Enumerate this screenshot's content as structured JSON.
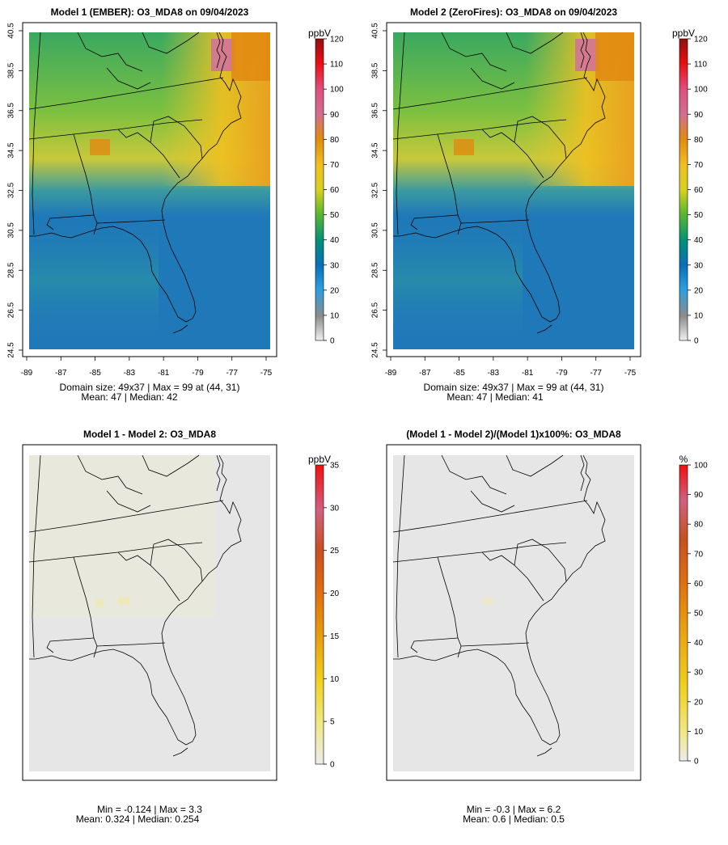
{
  "panels": [
    {
      "title": "Model 1 (EMBER): O3_MDA8 on 09/04/2023",
      "stats_line1": "Domain size: 49x37 | Max = 99 at (44, 31)",
      "stats_line2": "Mean: 47 | Median: 42",
      "unit": "ppbV",
      "scale": "ozone",
      "colorbar_ticks": [
        "0",
        "10",
        "20",
        "30",
        "40",
        "50",
        "60",
        "70",
        "80",
        "90",
        "100",
        "110",
        "120"
      ],
      "colorbar_max": 120,
      "show_axes": true
    },
    {
      "title": "Model 2 (ZeroFires): O3_MDA8 on 09/04/2023",
      "stats_line1": "Domain size: 49x37 | Max = 99 at (44, 31)",
      "stats_line2": "Mean: 47 | Median: 41",
      "unit": "ppbV",
      "scale": "ozone",
      "colorbar_ticks": [
        "0",
        "10",
        "20",
        "30",
        "40",
        "50",
        "60",
        "70",
        "80",
        "90",
        "100",
        "110",
        "120"
      ],
      "colorbar_max": 120,
      "show_axes": true
    },
    {
      "title": "Model 1 - Model 2: O3_MDA8",
      "stats_line1": "Min = -0.124 | Max = 3.3",
      "stats_line2": "Mean: 0.324 | Median: 0.254",
      "unit": "ppbV",
      "scale": "diff",
      "colorbar_ticks": [
        "0",
        "5",
        "10",
        "15",
        "20",
        "25",
        "30",
        "35"
      ],
      "colorbar_max": 35,
      "show_axes": false
    },
    {
      "title": "(Model 1 - Model 2)/(Model 1)x100%: O3_MDA8",
      "stats_line1": "Min = -0.3 | Max = 6.2",
      "stats_line2": "Mean: 0.6 | Median: 0.5",
      "unit": "%",
      "scale": "diff",
      "colorbar_ticks": [
        "0",
        "10",
        "20",
        "30",
        "40",
        "50",
        "60",
        "70",
        "80",
        "90",
        "100"
      ],
      "colorbar_max": 100,
      "show_axes": false
    }
  ],
  "x_ticks": [
    "-89",
    "-87",
    "-85",
    "-83",
    "-81",
    "-79",
    "-77",
    "-75"
  ],
  "y_ticks": [
    "24.5",
    "26.5",
    "28.5",
    "30.5",
    "32.5",
    "34.5",
    "36.5",
    "38.5",
    "40.5"
  ],
  "colors": {
    "ozone_scale": [
      "#e8e8e8",
      "#8c8c8c",
      "#2aa0e0",
      "#0a6fb8",
      "#00907a",
      "#5cb830",
      "#d8d020",
      "#f0b020",
      "#e07010",
      "#d07090",
      "#e81010",
      "#a01010"
    ],
    "diff_scale": [
      "#e8e8e8",
      "#f0e060",
      "#e8b820",
      "#e08010",
      "#c85010",
      "#d05070",
      "#e81010"
    ],
    "ocean_low": "#1f77b4",
    "neutral": "#e6e6e6"
  }
}
